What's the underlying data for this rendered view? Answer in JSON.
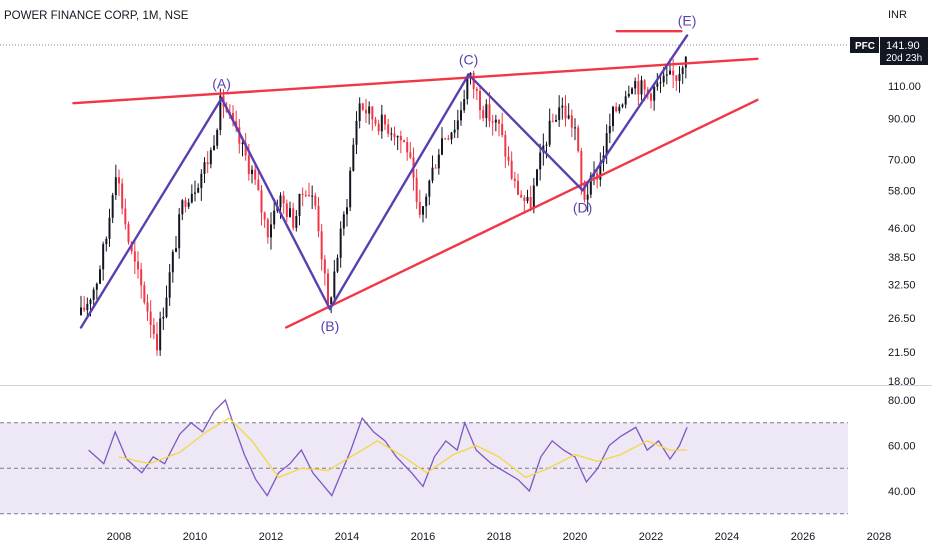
{
  "header": {
    "title": "POWER FINANCE CORP, 1M, NSE",
    "currency": "INR"
  },
  "price_badge": {
    "symbol": "PFC",
    "price": "141.90",
    "countdown": "20d 23h"
  },
  "colors": {
    "up": "#131722",
    "down": "#f23645",
    "wave": "#5b3fb0",
    "trendline": "#f23645",
    "rsi": "#7e57c2",
    "rsi_ma": "#f5d742",
    "rsi_band": "#ede7f6"
  },
  "chart_data": [
    {
      "type": "candlestick",
      "title": "POWER FINANCE CORP, 1M, NSE",
      "y_scale": "log",
      "ylim": [
        17,
        160
      ],
      "xlim": [
        2006.5,
        2028
      ],
      "y_ticks": [
        "110.00",
        "90.00",
        "70.00",
        "58.00",
        "46.00",
        "38.50",
        "32.50",
        "26.50",
        "21.50",
        "18.00"
      ],
      "x_ticks": [
        "2008",
        "2010",
        "2012",
        "2014",
        "2016",
        "2018",
        "2020",
        "2022",
        "2024",
        "2026",
        "2028"
      ],
      "last_price": 141.9,
      "price_path": [
        [
          2007.0,
          27
        ],
        [
          2007.4,
          33
        ],
        [
          2007.7,
          45
        ],
        [
          2007.9,
          68
        ],
        [
          2008.3,
          40
        ],
        [
          2008.8,
          27
        ],
        [
          2009.0,
          23
        ],
        [
          2009.3,
          33
        ],
        [
          2009.7,
          55
        ],
        [
          2010.0,
          60
        ],
        [
          2010.4,
          72
        ],
        [
          2010.7,
          102
        ],
        [
          2011.0,
          85
        ],
        [
          2011.5,
          65
        ],
        [
          2011.9,
          45
        ],
        [
          2012.2,
          56
        ],
        [
          2012.6,
          48
        ],
        [
          2012.9,
          60
        ],
        [
          2013.2,
          52
        ],
        [
          2013.5,
          28
        ],
        [
          2013.8,
          42
        ],
        [
          2014.0,
          55
        ],
        [
          2014.3,
          100
        ],
        [
          2014.7,
          90
        ],
        [
          2015.2,
          85
        ],
        [
          2015.6,
          75
        ],
        [
          2015.9,
          47
        ],
        [
          2016.1,
          58
        ],
        [
          2016.5,
          80
        ],
        [
          2016.9,
          88
        ],
        [
          2017.2,
          118
        ],
        [
          2017.6,
          95
        ],
        [
          2018.0,
          85
        ],
        [
          2018.4,
          60
        ],
        [
          2018.8,
          52
        ],
        [
          2019.2,
          78
        ],
        [
          2019.6,
          98
        ],
        [
          2020.0,
          85
        ],
        [
          2020.2,
          55
        ],
        [
          2020.6,
          65
        ],
        [
          2021.0,
          92
        ],
        [
          2021.5,
          115
        ],
        [
          2021.9,
          105
        ],
        [
          2022.3,
          112
        ],
        [
          2022.7,
          118
        ],
        [
          2022.95,
          141.9
        ]
      ],
      "trendlines": [
        {
          "from": [
            2006.8,
            99
          ],
          "to": [
            2024.8,
            130
          ]
        },
        {
          "from": [
            2012.4,
            25
          ],
          "to": [
            2024.8,
            101
          ]
        },
        {
          "from": [
            2021.1,
            154
          ],
          "to": [
            2022.8,
            154
          ]
        }
      ],
      "waves": [
        {
          "label": "(A)",
          "x": 2010.7,
          "y": 102
        },
        {
          "label": "(B)",
          "x": 2013.55,
          "y": 28
        },
        {
          "label": "(C)",
          "x": 2017.2,
          "y": 118
        },
        {
          "label": "(D)",
          "x": 2020.2,
          "y": 58
        },
        {
          "label": "(E)",
          "x": 2022.95,
          "y": 150
        }
      ],
      "wave_start": {
        "x": 2007.0,
        "y": 25
      }
    },
    {
      "type": "line",
      "title": "RSI",
      "ylim": [
        30,
        85
      ],
      "y_ticks": [
        "80.00",
        "60.00",
        "40.00"
      ],
      "band": [
        30,
        70
      ],
      "midline": 50,
      "series": [
        {
          "values": [
            [
              2007.2,
              58
            ],
            [
              2007.6,
              52
            ],
            [
              2007.9,
              66
            ],
            [
              2008.2,
              54
            ],
            [
              2008.6,
              48
            ],
            [
              2008.9,
              55
            ],
            [
              2009.2,
              52
            ],
            [
              2009.6,
              65
            ],
            [
              2009.9,
              70
            ],
            [
              2010.2,
              66
            ],
            [
              2010.5,
              75
            ],
            [
              2010.8,
              80
            ],
            [
              2011.0,
              70
            ],
            [
              2011.3,
              56
            ],
            [
              2011.6,
              45
            ],
            [
              2011.9,
              38
            ],
            [
              2012.2,
              48
            ],
            [
              2012.5,
              52
            ],
            [
              2012.8,
              58
            ],
            [
              2013.1,
              48
            ],
            [
              2013.4,
              42
            ],
            [
              2013.6,
              38
            ],
            [
              2013.9,
              50
            ],
            [
              2014.1,
              58
            ],
            [
              2014.4,
              72
            ],
            [
              2014.7,
              66
            ],
            [
              2015.0,
              62
            ],
            [
              2015.3,
              55
            ],
            [
              2015.7,
              48
            ],
            [
              2016.0,
              42
            ],
            [
              2016.3,
              55
            ],
            [
              2016.6,
              62
            ],
            [
              2016.9,
              58
            ],
            [
              2017.1,
              70
            ],
            [
              2017.4,
              58
            ],
            [
              2017.8,
              52
            ],
            [
              2018.2,
              48
            ],
            [
              2018.5,
              45
            ],
            [
              2018.8,
              40
            ],
            [
              2019.1,
              55
            ],
            [
              2019.4,
              62
            ],
            [
              2019.7,
              58
            ],
            [
              2020.0,
              55
            ],
            [
              2020.3,
              44
            ],
            [
              2020.6,
              50
            ],
            [
              2020.9,
              60
            ],
            [
              2021.2,
              64
            ],
            [
              2021.6,
              68
            ],
            [
              2021.9,
              58
            ],
            [
              2022.2,
              62
            ],
            [
              2022.5,
              54
            ],
            [
              2022.75,
              60
            ],
            [
              2022.95,
              68
            ]
          ]
        },
        {
          "values": [
            [
              2008.0,
              55
            ],
            [
              2008.8,
              52
            ],
            [
              2009.6,
              57
            ],
            [
              2010.3,
              66
            ],
            [
              2010.9,
              72
            ],
            [
              2011.5,
              62
            ],
            [
              2012.2,
              46
            ],
            [
              2012.8,
              50
            ],
            [
              2013.5,
              49
            ],
            [
              2014.2,
              56
            ],
            [
              2014.8,
              62
            ],
            [
              2015.5,
              55
            ],
            [
              2016.1,
              48
            ],
            [
              2016.8,
              56
            ],
            [
              2017.4,
              60
            ],
            [
              2018.0,
              55
            ],
            [
              2018.7,
              46
            ],
            [
              2019.3,
              50
            ],
            [
              2020.0,
              56
            ],
            [
              2020.6,
              53
            ],
            [
              2021.2,
              56
            ],
            [
              2021.9,
              62
            ],
            [
              2022.5,
              58
            ],
            [
              2022.95,
              58
            ]
          ]
        }
      ]
    }
  ]
}
